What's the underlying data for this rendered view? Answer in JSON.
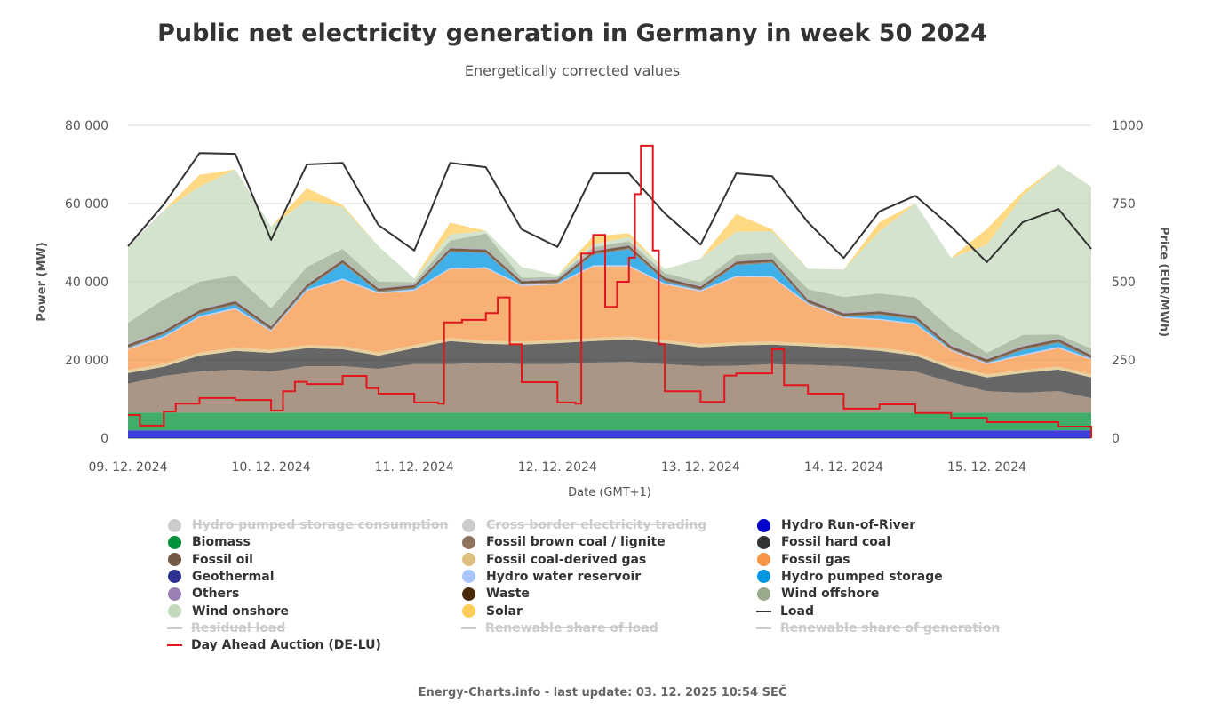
{
  "header": {
    "title": "Public net electricity generation in Germany in week 50 2024",
    "subtitle": "Energetically corrected values"
  },
  "footer": "Energy-Charts.info - last update: 03. 12. 2025 10:54 SEČ",
  "chart_data": {
    "type": "area",
    "title": "Public net electricity generation in Germany in week 50 2024",
    "subtitle": "Energetically corrected values",
    "xlabel": "Date (GMT+1)",
    "ylabel": "Power (MW)",
    "y2label": "Price (EUR/MWh)",
    "ylim": [
      0,
      80000
    ],
    "y2lim": [
      0,
      1000
    ],
    "xlim_hours": [
      0,
      161.5
    ],
    "grid": true,
    "legend_position": "bottom",
    "y_ticks": [
      {
        "value": 0,
        "label": "0"
      },
      {
        "value": 20000,
        "label": "20 000"
      },
      {
        "value": 40000,
        "label": "40 000"
      },
      {
        "value": 60000,
        "label": "60 000"
      },
      {
        "value": 80000,
        "label": "80 000"
      }
    ],
    "y2_ticks": [
      {
        "value": 0,
        "label": "0"
      },
      {
        "value": 250,
        "label": "250"
      },
      {
        "value": 500,
        "label": "500"
      },
      {
        "value": 750,
        "label": "750"
      },
      {
        "value": 1000,
        "label": "1000"
      }
    ],
    "x_ticks": [
      {
        "hour": 0,
        "label": "09. 12. 2024"
      },
      {
        "hour": 24,
        "label": "10. 12. 2024"
      },
      {
        "hour": 48,
        "label": "11. 12. 2024"
      },
      {
        "hour": 72,
        "label": "12. 12. 2024"
      },
      {
        "hour": 96,
        "label": "13. 12. 2024"
      },
      {
        "hour": 120,
        "label": "14. 12. 2024"
      },
      {
        "hour": 144,
        "label": "15. 12. 2024"
      }
    ],
    "x_hours": [
      0,
      6,
      12,
      18,
      24,
      30,
      36,
      42,
      48,
      54,
      60,
      66,
      72,
      78,
      84,
      90,
      96,
      102,
      108,
      114,
      120,
      126,
      132,
      138,
      144,
      150,
      156,
      161.5
    ],
    "stack": [
      {
        "name": "Hydro Run-of-River",
        "color": "#0000cc",
        "constant": 2000
      },
      {
        "name": "Geothermal",
        "color": "#2e3192",
        "constant": 20
      },
      {
        "name": "Biomass",
        "color": "#00913a",
        "constant": 4500
      },
      {
        "name": "Fossil brown coal / lignite",
        "color": "#8e735e",
        "values": [
          7400,
          9400,
          10500,
          11000,
          10500,
          11900,
          11900,
          11200,
          12400,
          12400,
          12800,
          12400,
          12400,
          12800,
          13000,
          12400,
          11900,
          12000,
          12400,
          12200,
          11900,
          11200,
          10500,
          7800,
          5500,
          5100,
          5500,
          3700
        ]
      },
      {
        "name": "Fossil hard coal",
        "color": "#333333",
        "values": [
          2700,
          2300,
          4100,
          4800,
          4800,
          4600,
          4300,
          3400,
          4100,
          5900,
          4800,
          5000,
          5400,
          5500,
          5700,
          5400,
          4800,
          5200,
          5000,
          4800,
          4600,
          4600,
          4100,
          3400,
          3500,
          5000,
          5500,
          5300
        ]
      },
      {
        "name": "Fossil coal-derived gas",
        "color": "#e0c07e",
        "constant": 800
      },
      {
        "name": "Fossil gas",
        "color": "#f79646",
        "values": [
          5300,
          6700,
          9000,
          9900,
          4700,
          13900,
          17000,
          15100,
          13900,
          17600,
          18500,
          14200,
          14200,
          18300,
          17900,
          14200,
          13500,
          16700,
          16400,
          9900,
          6900,
          7100,
          7200,
          3800,
          2600,
          3700,
          4700,
          3700
        ]
      },
      {
        "name": "Hydro water reservoir",
        "color": "#a9c6ff",
        "constant": 300
      },
      {
        "name": "Hydro pumped storage",
        "color": "#0097e0",
        "values": [
          0,
          500,
          600,
          800,
          0,
          300,
          3800,
          0,
          200,
          4100,
          3600,
          0,
          0,
          2700,
          4100,
          500,
          0,
          2700,
          3400,
          0,
          0,
          1000,
          900,
          0,
          0,
          1100,
          1100,
          0
        ]
      },
      {
        "name": "Fossil oil",
        "color": "#735a45",
        "constant": 300
      },
      {
        "name": "Waste",
        "color": "#4a2a08",
        "constant": 600
      },
      {
        "name": "Others",
        "color": "#9a7fb5",
        "constant": 200
      },
      {
        "name": "Wind offshore",
        "color": "#97ab8c",
        "values": [
          5400,
          7900,
          7100,
          6400,
          4500,
          4400,
          2700,
          1600,
          500,
          1800,
          3900,
          700,
          500,
          800,
          1000,
          1000,
          1000,
          1500,
          1500,
          2500,
          4000,
          4400,
          4600,
          4300,
          1500,
          2800,
          1000,
          1500
        ]
      },
      {
        "name": "Wind onshore",
        "color": "#c4dabc",
        "values": [
          19600,
          22700,
          24300,
          27100,
          20900,
          17100,
          10700,
          9100,
          1000,
          1600,
          700,
          2800,
          500,
          800,
          1000,
          1000,
          6000,
          6000,
          5500,
          5200,
          7000,
          15900,
          24000,
          18100,
          27700,
          35600,
          43400,
          41400
        ]
      },
      {
        "name": "Solar",
        "color": "#ffcc5a",
        "values": [
          0,
          0,
          3000,
          0,
          0,
          3000,
          500,
          0,
          0,
          3000,
          0,
          0,
          0,
          2000,
          1000,
          0,
          0,
          4500,
          500,
          0,
          0,
          2300,
          0,
          0,
          4000,
          1000,
          0,
          0
        ]
      }
    ],
    "load": {
      "name": "Load",
      "color": "#333333",
      "values": [
        49100,
        59800,
        72900,
        72700,
        50700,
        70000,
        70400,
        54500,
        48000,
        70400,
        69300,
        53400,
        48900,
        67700,
        67700,
        57500,
        49500,
        67700,
        67000,
        55200,
        46100,
        58000,
        62000,
        54100,
        45000,
        55200,
        58600,
        48400
      ]
    },
    "price": {
      "name": "Day Ahead Auction (DE-LU)",
      "color": "#e3161d",
      "axis": "right",
      "step": true,
      "points": [
        [
          0,
          74
        ],
        [
          2,
          40
        ],
        [
          4,
          40
        ],
        [
          6,
          85
        ],
        [
          8,
          110
        ],
        [
          12,
          128
        ],
        [
          18,
          122
        ],
        [
          24,
          88
        ],
        [
          26,
          150
        ],
        [
          28,
          180
        ],
        [
          30,
          173
        ],
        [
          36,
          199
        ],
        [
          40,
          160
        ],
        [
          42,
          142
        ],
        [
          48,
          114
        ],
        [
          52,
          110
        ],
        [
          53,
          370
        ],
        [
          56,
          378
        ],
        [
          60,
          400
        ],
        [
          62,
          450
        ],
        [
          64,
          300
        ],
        [
          66,
          179
        ],
        [
          72,
          114
        ],
        [
          75,
          110
        ],
        [
          76,
          590
        ],
        [
          78,
          650
        ],
        [
          80,
          420
        ],
        [
          82,
          500
        ],
        [
          84,
          577
        ],
        [
          85,
          780
        ],
        [
          86,
          935
        ],
        [
          87,
          935
        ],
        [
          88,
          600
        ],
        [
          89,
          300
        ],
        [
          90,
          150
        ],
        [
          96,
          116
        ],
        [
          100,
          200
        ],
        [
          102,
          207
        ],
        [
          108,
          284
        ],
        [
          110,
          170
        ],
        [
          114,
          142
        ],
        [
          120,
          94
        ],
        [
          126,
          108
        ],
        [
          132,
          80
        ],
        [
          138,
          65
        ],
        [
          144,
          51
        ],
        [
          150,
          51
        ],
        [
          156,
          37
        ],
        [
          161.5,
          0
        ]
      ]
    }
  },
  "legend": [
    {
      "label": "Hydro pumped storage consumption",
      "color": "#cccccc",
      "kind": "dot",
      "hidden": true
    },
    {
      "label": "Cross border electricity trading",
      "color": "#cccccc",
      "kind": "dot",
      "hidden": true
    },
    {
      "label": "Hydro Run-of-River",
      "color": "#0000cc",
      "kind": "dot",
      "hidden": false
    },
    {
      "label": "Biomass",
      "color": "#00913a",
      "kind": "dot",
      "hidden": false
    },
    {
      "label": "Fossil brown coal / lignite",
      "color": "#8e735e",
      "kind": "dot",
      "hidden": false
    },
    {
      "label": "Fossil hard coal",
      "color": "#333333",
      "kind": "dot",
      "hidden": false
    },
    {
      "label": "Fossil oil",
      "color": "#735a45",
      "kind": "dot",
      "hidden": false
    },
    {
      "label": "Fossil coal-derived gas",
      "color": "#e0c07e",
      "kind": "dot",
      "hidden": false
    },
    {
      "label": "Fossil gas",
      "color": "#f79646",
      "kind": "dot",
      "hidden": false
    },
    {
      "label": "Geothermal",
      "color": "#2e3192",
      "kind": "dot",
      "hidden": false
    },
    {
      "label": "Hydro water reservoir",
      "color": "#a9c6ff",
      "kind": "dot",
      "hidden": false
    },
    {
      "label": "Hydro pumped storage",
      "color": "#0097e0",
      "kind": "dot",
      "hidden": false
    },
    {
      "label": "Others",
      "color": "#9a7fb5",
      "kind": "dot",
      "hidden": false
    },
    {
      "label": "Waste",
      "color": "#4a2a08",
      "kind": "dot",
      "hidden": false
    },
    {
      "label": "Wind offshore",
      "color": "#97ab8c",
      "kind": "dot",
      "hidden": false
    },
    {
      "label": "Wind onshore",
      "color": "#c4dabc",
      "kind": "dot",
      "hidden": false
    },
    {
      "label": "Solar",
      "color": "#ffcc5a",
      "kind": "dot",
      "hidden": false
    },
    {
      "label": "Load",
      "color": "#333333",
      "kind": "line",
      "hidden": false
    },
    {
      "label": "Residual load",
      "color": "#cccccc",
      "kind": "line",
      "hidden": true
    },
    {
      "label": "Renewable share of load",
      "color": "#cccccc",
      "kind": "line",
      "hidden": true
    },
    {
      "label": "Renewable share of generation",
      "color": "#cccccc",
      "kind": "line",
      "hidden": true
    },
    {
      "label": "Day Ahead Auction (DE-LU)",
      "color": "#e3161d",
      "kind": "line",
      "hidden": false
    }
  ]
}
